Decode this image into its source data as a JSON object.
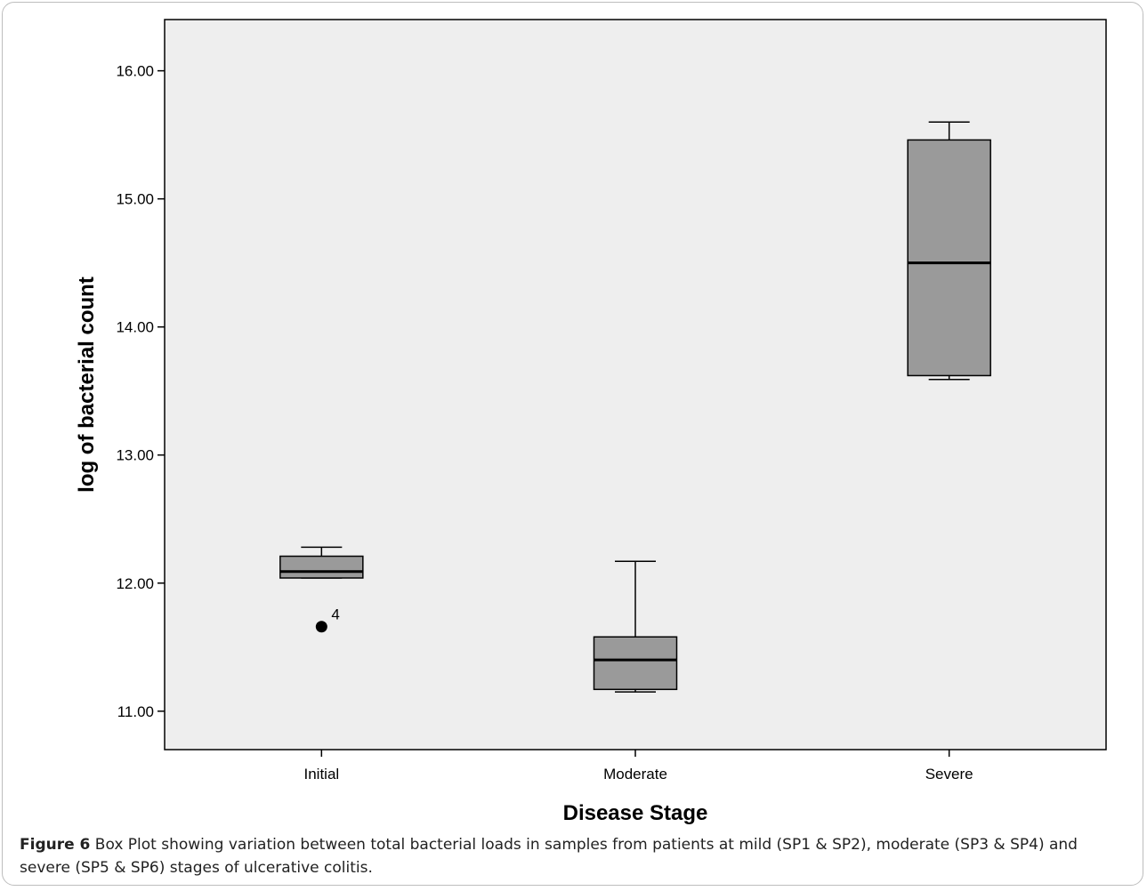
{
  "figure": {
    "caption_label": "Figure 6",
    "caption_text": " Box Plot showing variation between total bacterial loads in samples from patients at mild (SP1 & SP2), moderate (SP3 & SP4) and severe (SP5 & SP6) stages of ulcerative colitis."
  },
  "chart_data": {
    "type": "box",
    "xlabel": "Disease Stage",
    "ylabel": "log of bacterial count",
    "ylim": [
      10.7,
      16.4
    ],
    "y_ticks": [
      11,
      12,
      13,
      14,
      15,
      16
    ],
    "y_tick_labels": [
      "11.00",
      "12.00",
      "13.00",
      "14.00",
      "15.00",
      "16.00"
    ],
    "categories": [
      "Initial",
      "Moderate",
      "Severe"
    ],
    "boxes": [
      {
        "category": "Initial",
        "whisker_low": 12.04,
        "q1": 12.04,
        "median": 12.09,
        "q3": 12.21,
        "whisker_high": 12.28,
        "outliers": [
          {
            "value": 11.66,
            "label": "4"
          }
        ]
      },
      {
        "category": "Moderate",
        "whisker_low": 11.15,
        "q1": 11.17,
        "median": 11.4,
        "q3": 11.58,
        "whisker_high": 12.17,
        "outliers": []
      },
      {
        "category": "Severe",
        "whisker_low": 13.59,
        "q1": 13.62,
        "median": 14.5,
        "q3": 15.46,
        "whisker_high": 15.6,
        "outliers": []
      }
    ],
    "box_fill": "#9a9a9a",
    "plot_background": "#eeeeee",
    "grid": false,
    "legend": "none"
  }
}
